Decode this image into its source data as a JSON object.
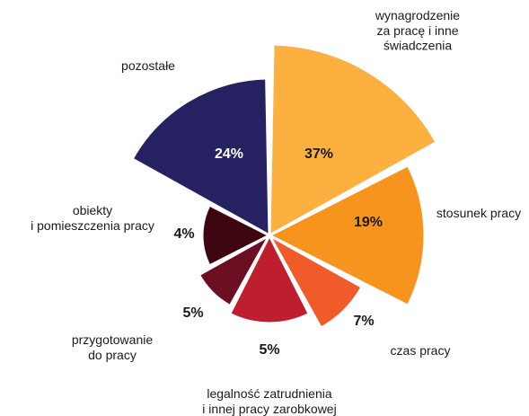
{
  "chart_data": {
    "type": "polar-area",
    "unit": "%",
    "gap_color": "#ffffff",
    "segments": [
      {
        "key": "wynagrodzenie",
        "label_lines": [
          "wynagrodzenie",
          "za pracę i inne",
          "świadczenia"
        ],
        "value": 37,
        "value_label": "37%",
        "color": "#fcb040"
      },
      {
        "key": "stosunek",
        "label_lines": [
          "stosunek pracy"
        ],
        "value": 19,
        "value_label": "19%",
        "color": "#f7941d"
      },
      {
        "key": "czas",
        "label_lines": [
          "czas pracy"
        ],
        "value": 7,
        "value_label": "7%",
        "color": "#f15a29"
      },
      {
        "key": "legalnosc",
        "label_lines": [
          "legalność zatrudnienia",
          "i innej pracy zarobkowej"
        ],
        "value": 5,
        "value_label": "5%",
        "color": "#be1e2d"
      },
      {
        "key": "przygotowanie",
        "label_lines": [
          "przygotowanie",
          "do pracy"
        ],
        "value": 5,
        "value_label": "5%",
        "color": "#6d0f22"
      },
      {
        "key": "obiekty",
        "label_lines": [
          "obiekty",
          "i pomieszczenia pracy"
        ],
        "value": 4,
        "value_label": "4%",
        "color": "#3d0610"
      },
      {
        "key": "pozostale",
        "label_lines": [
          "pozostałe"
        ],
        "value": 24,
        "value_label": "24%",
        "color": "#262262"
      }
    ]
  }
}
